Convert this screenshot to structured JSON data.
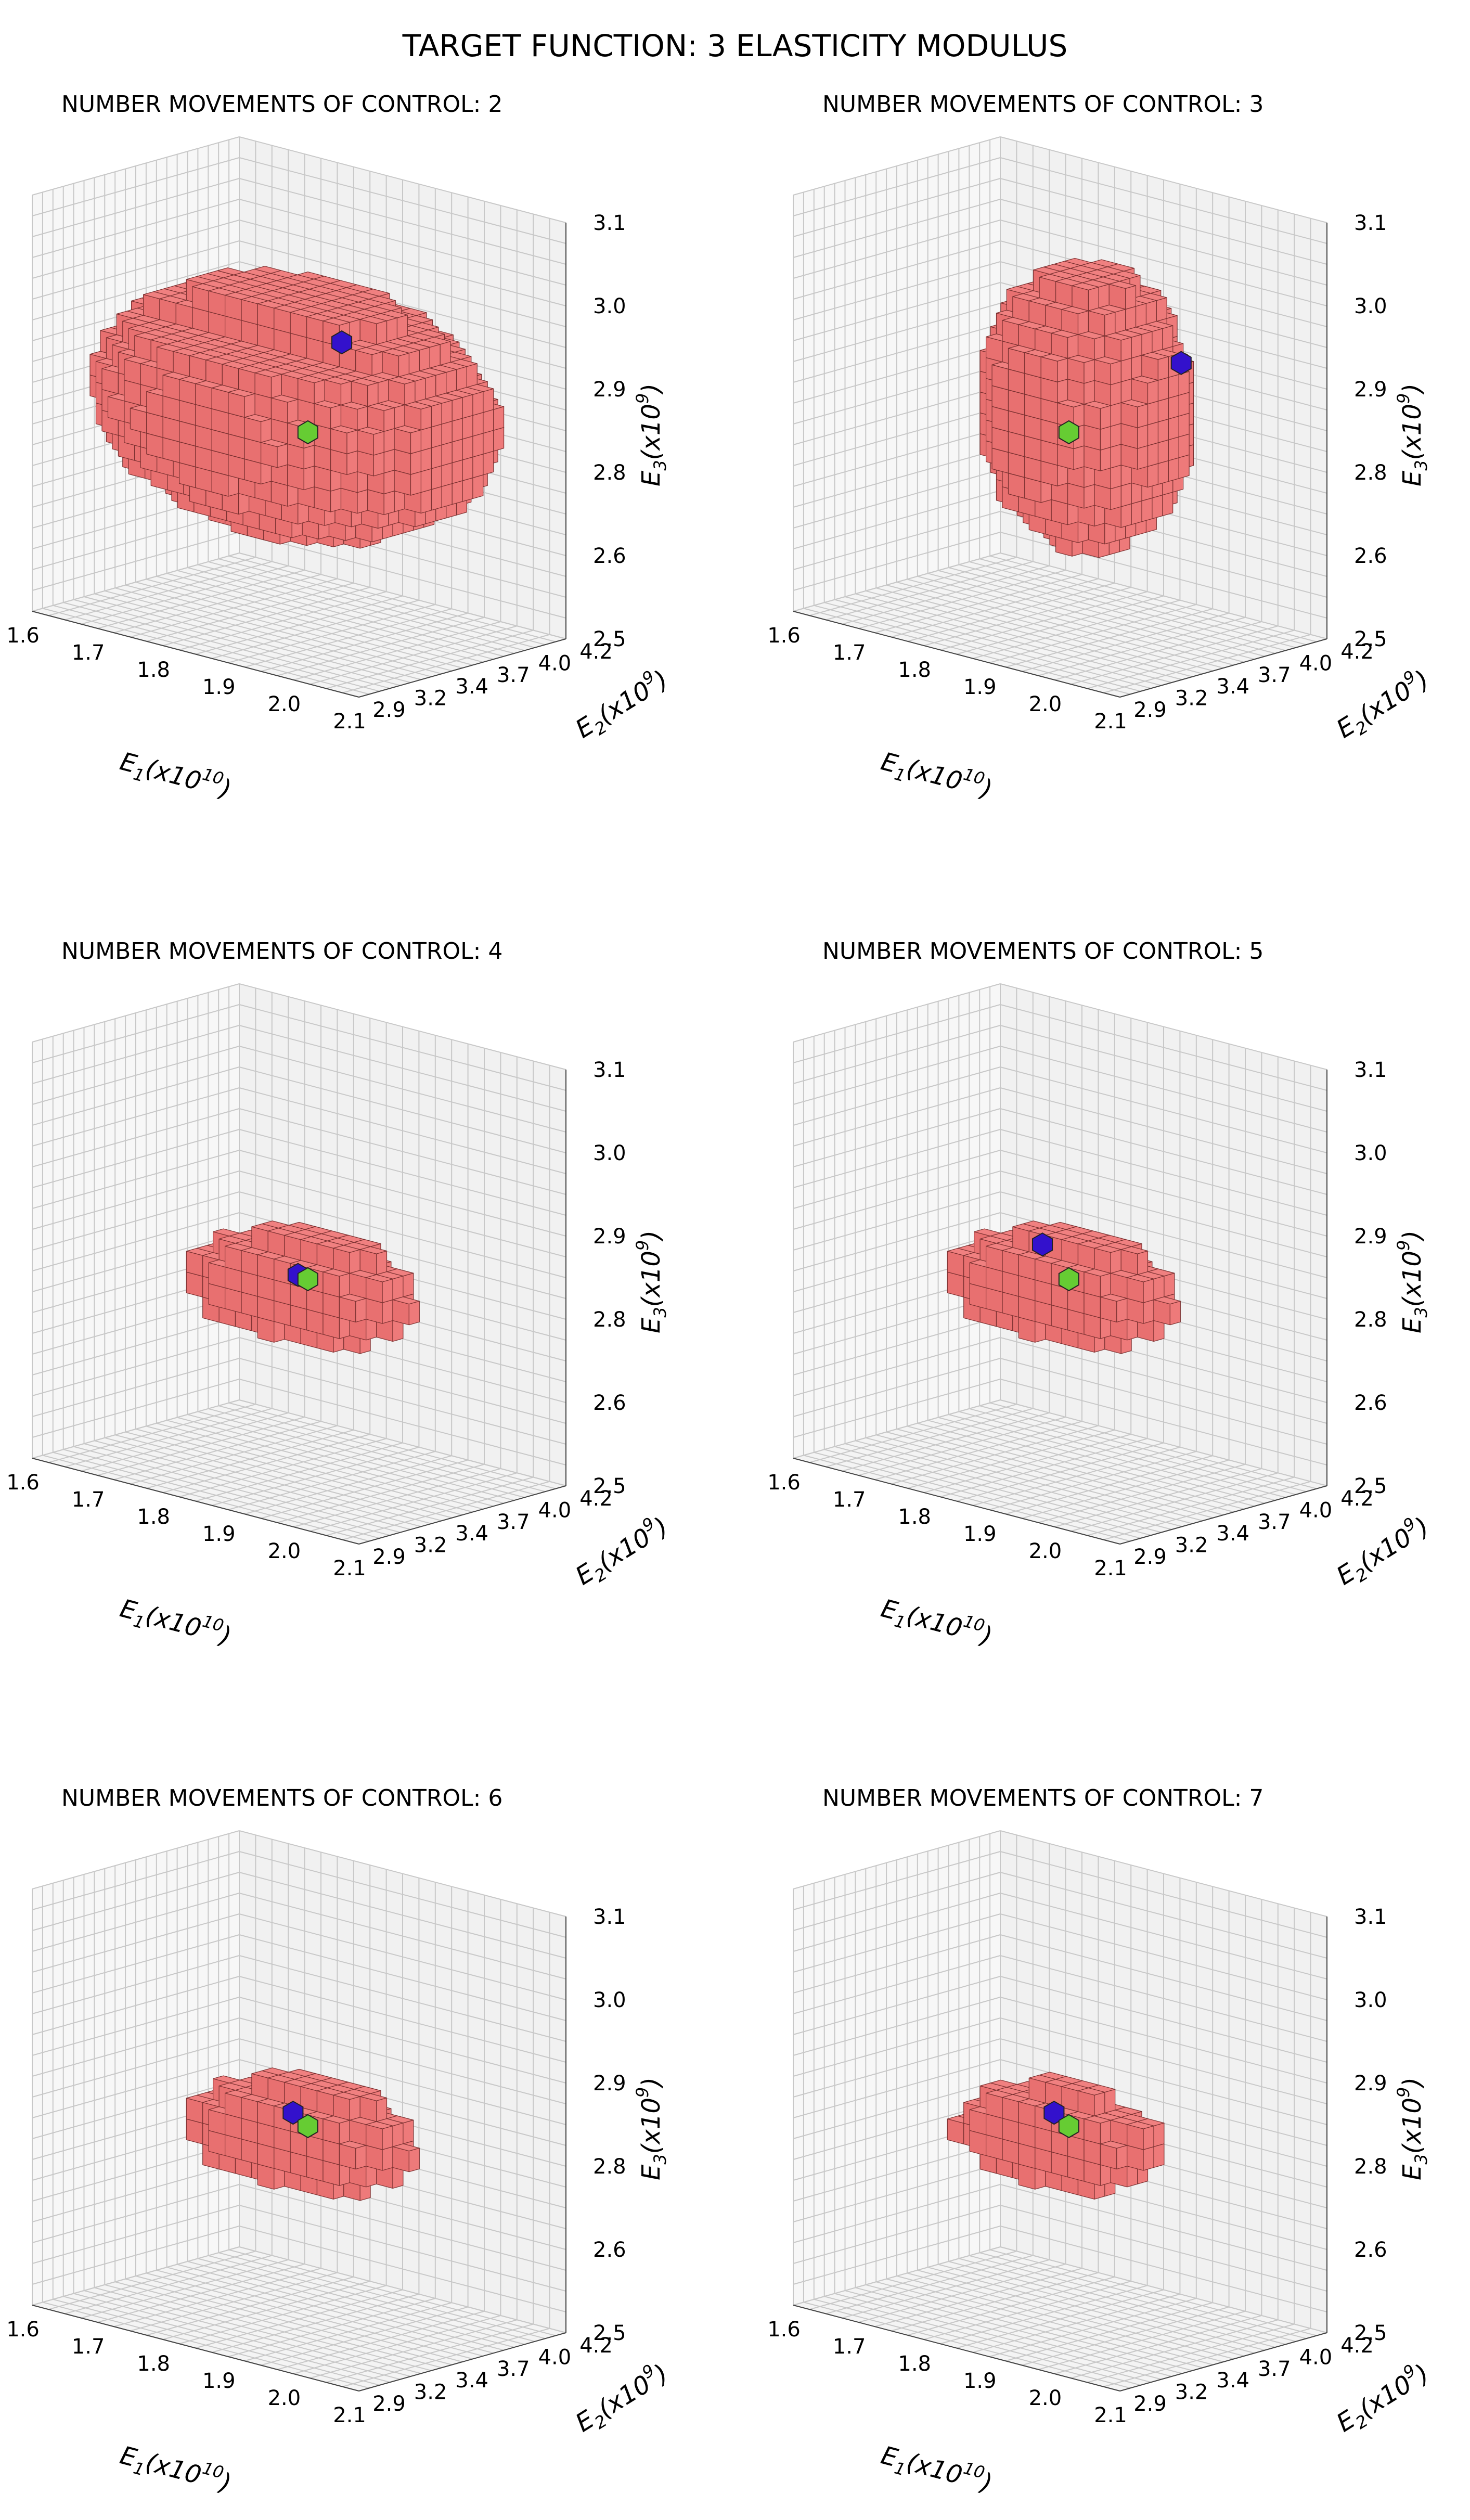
{
  "figure_title": "TARGET FUNCTION: 3 ELASTICITY MODULUS",
  "colors": {
    "voxel_face": "#f08080",
    "voxel_edge": "#7a3030",
    "voxel_dark": "#e03030",
    "green_marker": "#66cc33",
    "blue_marker": "#3311cc",
    "grid_line": "#c8c8c8",
    "pane": "#f4f4f4"
  },
  "chart_data": [
    {
      "type": "voxel3d",
      "title": "NUMBER MOVEMENTS OF CONTROL: 2",
      "xlabel": "E",
      "xlabel_sub": "1",
      "xlabel_unit": "(x10",
      "xlabel_exp": "10",
      "xlabel_close": ")",
      "ylabel": "E",
      "ylabel_sub": "2",
      "ylabel_unit": "(x10",
      "ylabel_exp": "9",
      "ylabel_close": ")",
      "zlabel": "E",
      "zlabel_sub": "3",
      "zlabel_unit": "(x10",
      "zlabel_exp": "9",
      "zlabel_close": ")",
      "xlim": [
        1.6,
        2.1
      ],
      "ylim": [
        2.9,
        4.2
      ],
      "zlim": [
        2.5,
        3.1
      ],
      "xticks": [
        "1.6",
        "1.7",
        "1.8",
        "1.9",
        "2.0",
        "2.1"
      ],
      "yticks": [
        "2.9",
        "3.2",
        "3.4",
        "3.7",
        "4.0",
        "4.2"
      ],
      "zticks": [
        "2.5",
        "2.6",
        "2.8",
        "2.9",
        "3.0",
        "3.1"
      ],
      "region": {
        "center": [
          1.86,
          3.5,
          2.82
        ],
        "half_extent": [
          0.26,
          0.62,
          0.17
        ],
        "shape": "broad"
      },
      "green_point": [
        1.9,
        3.4,
        2.8
      ],
      "blue_point": [
        1.83,
        3.9,
        2.88
      ]
    },
    {
      "type": "voxel3d",
      "title": "NUMBER MOVEMENTS OF CONTROL: 3",
      "xlabel": "E",
      "xlabel_sub": "1",
      "xlabel_unit": "(x10",
      "xlabel_exp": "10",
      "xlabel_close": ")",
      "ylabel": "E",
      "ylabel_sub": "2",
      "ylabel_unit": "(x10",
      "ylabel_exp": "9",
      "ylabel_close": ")",
      "zlabel": "E",
      "zlabel_sub": "3",
      "zlabel_unit": "(x10",
      "zlabel_exp": "9",
      "zlabel_close": ")",
      "xlim": [
        1.6,
        2.1
      ],
      "ylim": [
        2.9,
        4.2
      ],
      "zlim": [
        2.5,
        3.1
      ],
      "xticks": [
        "1.6",
        "1.7",
        "1.8",
        "1.9",
        "2.0",
        "2.1"
      ],
      "yticks": [
        "2.9",
        "3.2",
        "3.4",
        "3.7",
        "4.0",
        "4.2"
      ],
      "zticks": [
        "2.5",
        "2.6",
        "2.8",
        "2.9",
        "3.0",
        "3.1"
      ],
      "region": {
        "center": [
          1.88,
          3.6,
          2.82
        ],
        "half_extent": [
          0.12,
          0.4,
          0.2
        ],
        "shape": "oval"
      },
      "green_point": [
        1.9,
        3.4,
        2.8
      ],
      "blue_point": [
        1.95,
        3.9,
        2.88
      ]
    },
    {
      "type": "voxel3d",
      "title": "NUMBER MOVEMENTS OF CONTROL: 4",
      "xlabel": "E",
      "xlabel_sub": "1",
      "xlabel_unit": "(x10",
      "xlabel_exp": "10",
      "xlabel_close": ")",
      "ylabel": "E",
      "ylabel_sub": "2",
      "ylabel_unit": "(x10",
      "ylabel_exp": "9",
      "ylabel_close": ")",
      "zlabel": "E",
      "zlabel_sub": "3",
      "zlabel_unit": "(x10",
      "zlabel_exp": "9",
      "zlabel_close": ")",
      "xlim": [
        1.6,
        2.1
      ],
      "ylim": [
        2.9,
        4.2
      ],
      "zlim": [
        2.5,
        3.1
      ],
      "xticks": [
        "1.6",
        "1.7",
        "1.8",
        "1.9",
        "2.0",
        "2.1"
      ],
      "yticks": [
        "2.9",
        "3.2",
        "3.4",
        "3.7",
        "4.0",
        "4.2"
      ],
      "zticks": [
        "2.5",
        "2.6",
        "2.8",
        "2.9",
        "3.0",
        "3.1"
      ],
      "region": {
        "center": [
          1.88,
          3.45,
          2.78
        ],
        "half_extent": [
          0.16,
          0.18,
          0.09
        ],
        "shape": "slab"
      },
      "green_point": [
        1.9,
        3.4,
        2.8
      ],
      "blue_point": [
        1.88,
        3.42,
        2.8
      ]
    },
    {
      "type": "voxel3d",
      "title": "NUMBER MOVEMENTS OF CONTROL: 5",
      "xlabel": "E",
      "xlabel_sub": "1",
      "xlabel_unit": "(x10",
      "xlabel_exp": "10",
      "xlabel_close": ")",
      "ylabel": "E",
      "ylabel_sub": "2",
      "ylabel_unit": "(x10",
      "ylabel_exp": "9",
      "ylabel_close": ")",
      "zlabel": "E",
      "zlabel_sub": "3",
      "zlabel_unit": "(x10",
      "zlabel_exp": "9",
      "zlabel_close": ")",
      "xlim": [
        1.6,
        2.1
      ],
      "ylim": [
        2.9,
        4.2
      ],
      "zlim": [
        2.5,
        3.1
      ],
      "xticks": [
        "1.6",
        "1.7",
        "1.8",
        "1.9",
        "2.0",
        "2.1"
      ],
      "yticks": [
        "2.9",
        "3.2",
        "3.4",
        "3.7",
        "4.0",
        "4.2"
      ],
      "zticks": [
        "2.5",
        "2.6",
        "2.8",
        "2.9",
        "3.0",
        "3.1"
      ],
      "region": {
        "center": [
          1.88,
          3.45,
          2.78
        ],
        "half_extent": [
          0.16,
          0.18,
          0.09
        ],
        "shape": "slab"
      },
      "green_point": [
        1.9,
        3.4,
        2.8
      ],
      "blue_point": [
        1.84,
        3.48,
        2.83
      ]
    },
    {
      "type": "voxel3d",
      "title": "NUMBER MOVEMENTS OF CONTROL: 6",
      "xlabel": "E",
      "xlabel_sub": "1",
      "xlabel_unit": "(x10",
      "xlabel_exp": "10",
      "xlabel_close": ")",
      "ylabel": "E",
      "ylabel_sub": "2",
      "ylabel_unit": "(x10",
      "ylabel_exp": "9",
      "ylabel_close": ")",
      "zlabel": "E",
      "zlabel_sub": "3",
      "zlabel_unit": "(x10",
      "zlabel_exp": "9",
      "zlabel_close": ")",
      "xlim": [
        1.6,
        2.1
      ],
      "ylim": [
        2.9,
        4.2
      ],
      "zlim": [
        2.5,
        3.1
      ],
      "xticks": [
        "1.6",
        "1.7",
        "1.8",
        "1.9",
        "2.0",
        "2.1"
      ],
      "yticks": [
        "2.9",
        "3.2",
        "3.4",
        "3.7",
        "4.0",
        "4.2"
      ],
      "zticks": [
        "2.5",
        "2.6",
        "2.8",
        "2.9",
        "3.0",
        "3.1"
      ],
      "region": {
        "center": [
          1.88,
          3.45,
          2.78
        ],
        "half_extent": [
          0.16,
          0.18,
          0.09
        ],
        "shape": "slab"
      },
      "green_point": [
        1.9,
        3.4,
        2.8
      ],
      "blue_point": [
        1.87,
        3.43,
        2.81
      ]
    },
    {
      "type": "voxel3d",
      "title": "NUMBER MOVEMENTS OF CONTROL: 7",
      "xlabel": "E",
      "xlabel_sub": "1",
      "xlabel_unit": "(x10",
      "xlabel_exp": "10",
      "xlabel_close": ")",
      "ylabel": "E",
      "ylabel_sub": "2",
      "ylabel_unit": "(x10",
      "ylabel_exp": "9",
      "ylabel_close": ")",
      "zlabel": "E",
      "zlabel_sub": "3",
      "zlabel_unit": "(x10",
      "zlabel_exp": "9",
      "zlabel_close": ")",
      "xlim": [
        1.6,
        2.1
      ],
      "ylim": [
        2.9,
        4.2
      ],
      "zlim": [
        2.5,
        3.1
      ],
      "xticks": [
        "1.6",
        "1.7",
        "1.8",
        "1.9",
        "2.0",
        "2.1"
      ],
      "yticks": [
        "2.9",
        "3.2",
        "3.4",
        "3.7",
        "4.0",
        "4.2"
      ],
      "zticks": [
        "2.5",
        "2.6",
        "2.8",
        "2.9",
        "3.0",
        "3.1"
      ],
      "region": {
        "center": [
          1.88,
          3.42,
          2.78
        ],
        "half_extent": [
          0.15,
          0.16,
          0.08
        ],
        "shape": "slab"
      },
      "green_point": [
        1.9,
        3.4,
        2.8
      ],
      "blue_point": [
        1.87,
        3.43,
        2.81
      ]
    }
  ]
}
